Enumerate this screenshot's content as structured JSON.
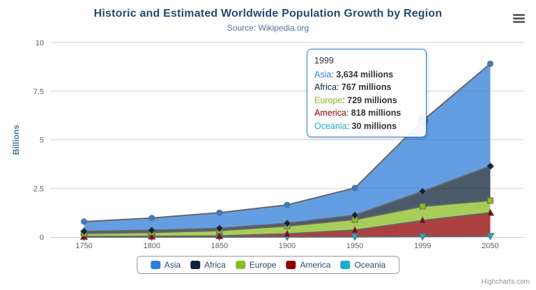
{
  "chart": {
    "title": "Historic and Estimated Worldwide Population Growth by Region",
    "subtitle": "Source: Wikipedia.org",
    "credits": "Highcharts.com"
  },
  "chart_data": {
    "type": "area",
    "stacking": "normal",
    "title": "Historic and Estimated Worldwide Population Growth by Region",
    "subtitle": "Source: Wikipedia.org",
    "categories": [
      "1750",
      "1800",
      "1850",
      "1900",
      "1950",
      "1999",
      "2050"
    ],
    "series": [
      {
        "name": "Asia",
        "color": "#2f7ed8",
        "marker": "circle",
        "values": [
          502,
          635,
          809,
          947,
          1402,
          3634,
          5268
        ]
      },
      {
        "name": "Africa",
        "color": "#0d233a",
        "marker": "diamond",
        "values": [
          106,
          107,
          111,
          133,
          221,
          767,
          1766
        ]
      },
      {
        "name": "Europe",
        "color": "#8bbc21",
        "marker": "square",
        "values": [
          163,
          203,
          276,
          408,
          547,
          729,
          628
        ]
      },
      {
        "name": "America",
        "color": "#910000",
        "marker": "triangle",
        "values": [
          18,
          31,
          54,
          156,
          339,
          818,
          1201
        ]
      },
      {
        "name": "Oceania",
        "color": "#1aadce",
        "marker": "triangle-down",
        "values": [
          2,
          2,
          2,
          6,
          13,
          30,
          46
        ]
      }
    ],
    "values_unit": "millions",
    "xlabel": "",
    "ylabel": "Billions",
    "ylim": [
      0,
      10
    ],
    "yticks": [
      "0",
      "2.5",
      "5",
      "7.5",
      "10"
    ],
    "grid": "horizontal",
    "legend_position": "bottom-center",
    "line_color": "#666666",
    "fill_opacity": 0.75,
    "hover": {
      "series": "Asia",
      "category": "1999"
    },
    "colors": {
      "grid": "#d0d0d0",
      "axis_line": "#c0d0e0",
      "tick_label": "#606060",
      "axis_title": "#4d759e"
    }
  },
  "tooltip": {
    "title": "1999",
    "border_color": "#2f7ed8",
    "rows": [
      {
        "name": "Asia",
        "color": "#2f7ed8",
        "value": "3,634 millions"
      },
      {
        "name": "Africa",
        "color": "#0d233a",
        "value": "767 millions"
      },
      {
        "name": "Europe",
        "color": "#8bbc21",
        "value": "729 millions"
      },
      {
        "name": "America",
        "color": "#910000",
        "value": "818 millions"
      },
      {
        "name": "Oceania",
        "color": "#1aadce",
        "value": "30 millions"
      }
    ]
  },
  "legend": {
    "items": [
      {
        "label": "Asia",
        "color": "#2f7ed8"
      },
      {
        "label": "Africa",
        "color": "#0d233a"
      },
      {
        "label": "Europe",
        "color": "#8bbc21"
      },
      {
        "label": "America",
        "color": "#910000"
      },
      {
        "label": "Oceania",
        "color": "#1aadce"
      }
    ]
  }
}
